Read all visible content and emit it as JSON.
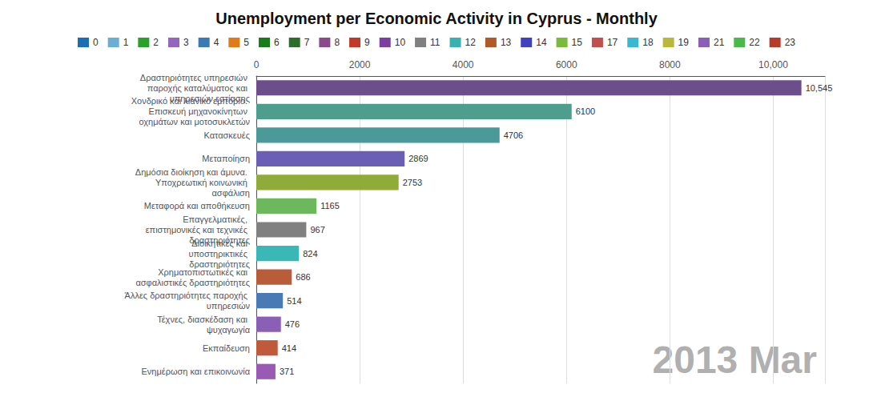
{
  "chart_data": {
    "type": "bar",
    "orientation": "horizontal",
    "title": "Unemployment per Economic Activity in Cyprus - Monthly",
    "categories": [
      "Δραστηριότητες υπηρεσιών παροχής καταλύματος και υπηρεσιών εστίασης",
      "Χονδρικό και λιανικό εμπόριο. Επισκευή μηχανοκίνητων οχημάτων και μοτοσυκλετών",
      "Κατασκευές",
      "Μεταποίηση",
      "Δημόσια διοίκηση και άμυνα. Υποχρεωτική κοινωνική ασφάλιση",
      "Μεταφορά και αποθήκευση",
      "Επαγγελματικές, επιστημονικές και τεχνικές δραστηριότητες",
      "Διοικητικές και υποστηρικτικές δραστηριότητες",
      "Χρηματοπιστωτικές και ασφαλιστικές δραστηριότητες",
      "Άλλες δραστηριότητες παροχής υπηρεσιών",
      "Τέχνες, διασκέδαση και ψυχαγωγία",
      "Εκπαίδευση",
      "Ενημέρωση και επικοινωνία"
    ],
    "values": [
      10545,
      6100,
      4706,
      2869,
      2753,
      1165,
      967,
      824,
      686,
      514,
      476,
      414,
      371
    ],
    "value_labels": [
      "10,545",
      "6100",
      "4706",
      "2869",
      "2753",
      "1165",
      "967",
      "824",
      "686",
      "514",
      "476",
      "414",
      "371"
    ],
    "data_labels": true,
    "colors": [
      "#6b4e8a",
      "#4d9e8c",
      "#4a9a9a",
      "#6b5fb5",
      "#8fac3a",
      "#6db85c",
      "#808080",
      "#3ab8b8",
      "#b85c3a",
      "#4a7ab5",
      "#8a5fb5",
      "#c05a3a",
      "#9b59b6"
    ],
    "xlim": [
      0,
      11000
    ],
    "xticks": [
      0,
      2000,
      4000,
      6000,
      8000,
      {
        "value": 10000,
        "label": "10,000"
      }
    ],
    "grid": true,
    "legend": "top",
    "legend_entries": [
      {
        "name": "0",
        "color": "#1a6eb5"
      },
      {
        "name": "1",
        "color": "#6aaed6"
      },
      {
        "name": "2",
        "color": "#2ca02c"
      },
      {
        "name": "3",
        "color": "#9467bd"
      },
      {
        "name": "4",
        "color": "#3a7ab5"
      },
      {
        "name": "5",
        "color": "#e07b1a"
      },
      {
        "name": "6",
        "color": "#1a7b1a"
      },
      {
        "name": "7",
        "color": "#2d6e2d"
      },
      {
        "name": "8",
        "color": "#8c4a8c"
      },
      {
        "name": "9",
        "color": "#c0392b"
      },
      {
        "name": "10",
        "color": "#7b3fa0"
      },
      {
        "name": "11",
        "color": "#808080"
      },
      {
        "name": "12",
        "color": "#3ab0b0"
      },
      {
        "name": "13",
        "color": "#b05a2a"
      },
      {
        "name": "14",
        "color": "#4040c0"
      },
      {
        "name": "15",
        "color": "#7bba3a"
      },
      {
        "name": "17",
        "color": "#c05050"
      },
      {
        "name": "18",
        "color": "#3ab8d0"
      },
      {
        "name": "19",
        "color": "#b8b83a"
      },
      {
        "name": "21",
        "color": "#8b5fb8"
      },
      {
        "name": "22",
        "color": "#4ab84a"
      },
      {
        "name": "23",
        "color": "#b83a2a"
      }
    ],
    "annotations": [
      {
        "text": "2013 Mar",
        "color": "#b0b0b0"
      }
    ]
  }
}
